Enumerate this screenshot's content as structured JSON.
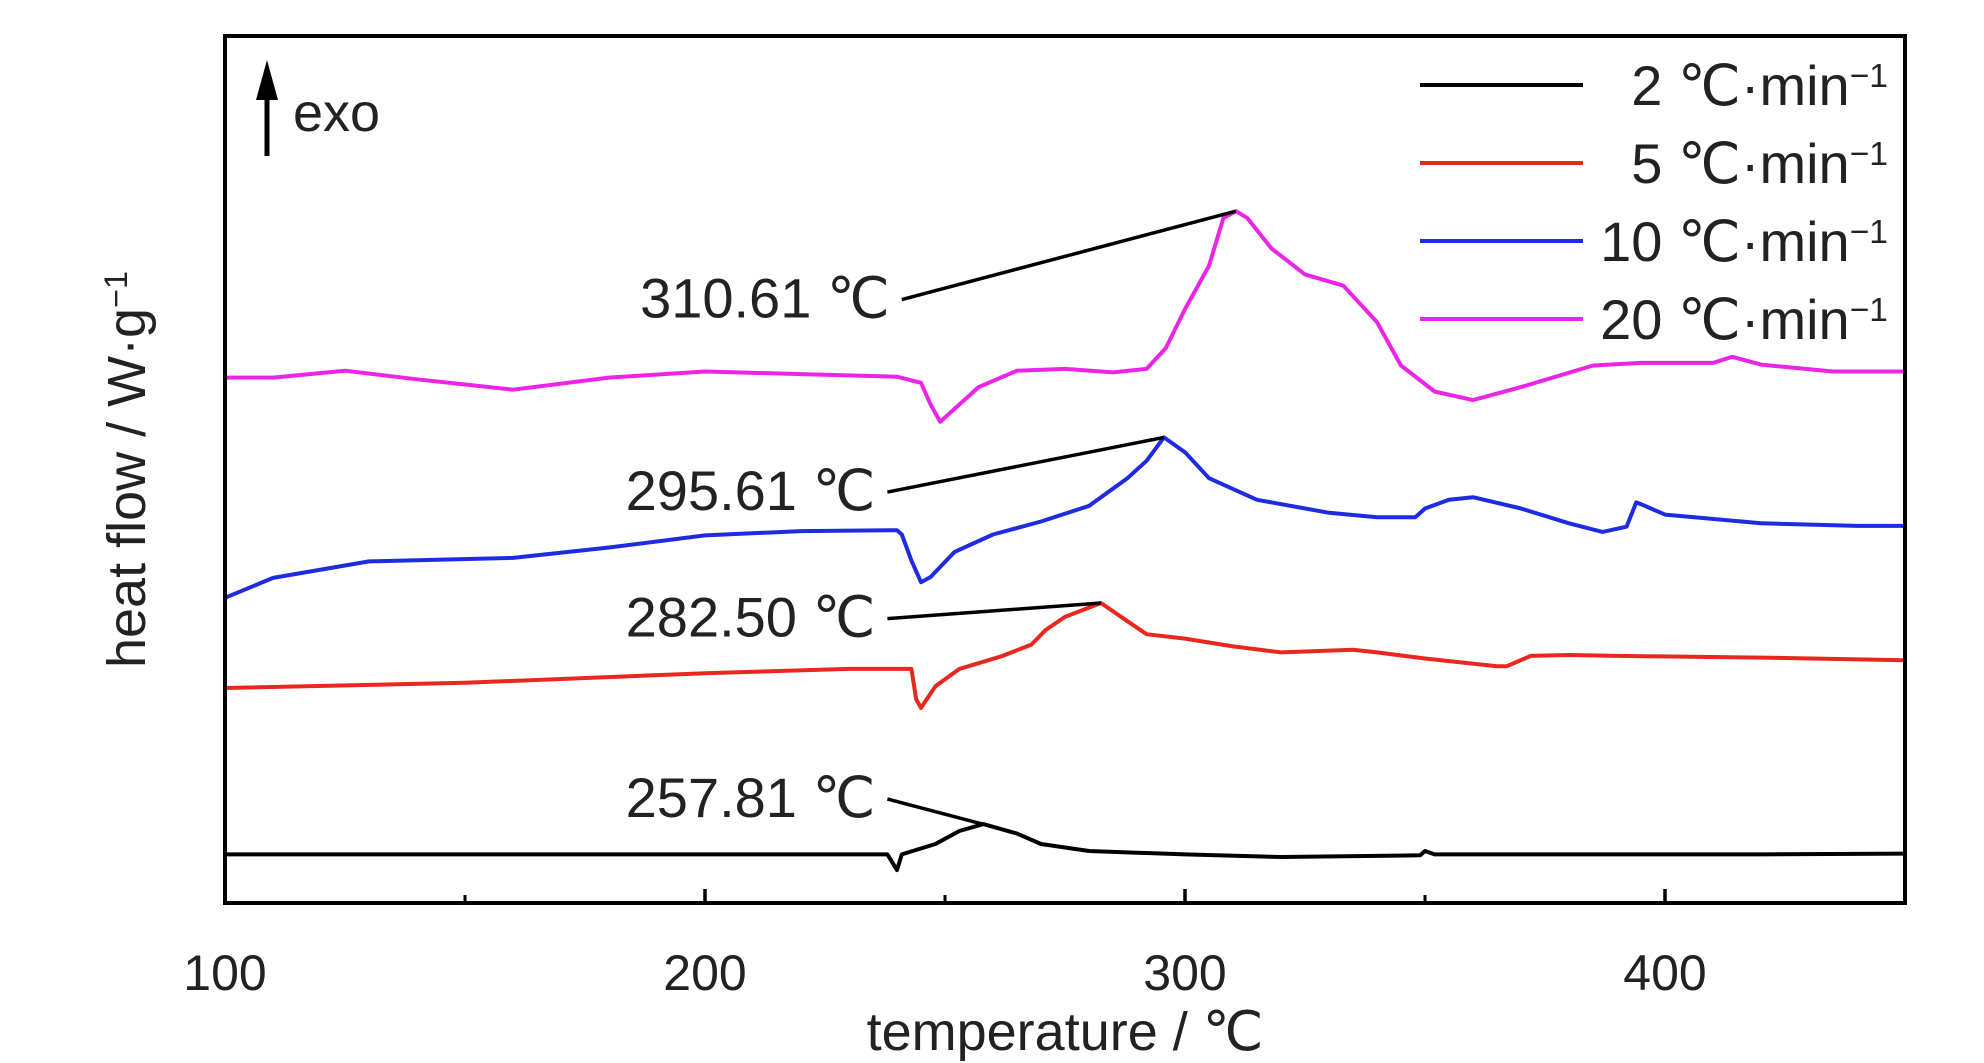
{
  "chart_data": {
    "type": "line",
    "xlabel": "temperature / ℃",
    "ylabel": "heat flow / W·g",
    "ylabel_sup": "−1",
    "xlim": [
      100,
      450
    ],
    "ylim": [
      0,
      100
    ],
    "x_ticks": [
      100,
      200,
      300,
      400
    ],
    "x_minor_ticks": [
      150,
      250,
      350
    ],
    "grid": false,
    "legend_position": "top-right",
    "exo_label": "exo",
    "series": [
      {
        "name": "2 ℃·min",
        "name_sup": "−1",
        "color": "#000000",
        "points": [
          [
            100,
            5.6
          ],
          [
            150,
            5.6
          ],
          [
            200,
            5.6
          ],
          [
            238,
            5.6
          ],
          [
            240,
            3.8
          ],
          [
            241,
            5.6
          ],
          [
            248,
            6.8
          ],
          [
            253,
            8.3
          ],
          [
            258,
            9.1
          ],
          [
            265,
            8.0
          ],
          [
            270,
            6.8
          ],
          [
            280,
            6.0
          ],
          [
            300,
            5.6
          ],
          [
            320,
            5.3
          ],
          [
            349,
            5.5
          ],
          [
            350,
            6.0
          ],
          [
            352,
            5.6
          ],
          [
            380,
            5.6
          ],
          [
            420,
            5.6
          ],
          [
            450,
            5.7
          ]
        ]
      },
      {
        "name": "5 ℃·min",
        "name_sup": "−1",
        "color": "#e8281e",
        "points": [
          [
            100,
            24.8
          ],
          [
            150,
            25.4
          ],
          [
            200,
            26.5
          ],
          [
            230,
            27.0
          ],
          [
            243,
            27.0
          ],
          [
            244,
            23.5
          ],
          [
            245,
            22.5
          ],
          [
            248,
            25.0
          ],
          [
            253,
            27.0
          ],
          [
            262,
            28.5
          ],
          [
            268,
            29.8
          ],
          [
            271,
            31.5
          ],
          [
            275,
            33.0
          ],
          [
            282.5,
            34.6
          ],
          [
            288,
            32.5
          ],
          [
            292,
            31.0
          ],
          [
            300,
            30.5
          ],
          [
            310,
            29.6
          ],
          [
            320,
            28.9
          ],
          [
            335,
            29.2
          ],
          [
            340,
            28.9
          ],
          [
            350,
            28.2
          ],
          [
            365,
            27.3
          ],
          [
            367,
            27.3
          ],
          [
            372,
            28.5
          ],
          [
            380,
            28.6
          ],
          [
            390,
            28.5
          ],
          [
            420,
            28.3
          ],
          [
            450,
            28.0
          ]
        ]
      },
      {
        "name": "10 ℃·min",
        "name_sup": "−1",
        "color": "#1f2be0",
        "points": [
          [
            100,
            35.2
          ],
          [
            110,
            37.5
          ],
          [
            130,
            39.4
          ],
          [
            160,
            39.8
          ],
          [
            180,
            41.0
          ],
          [
            200,
            42.4
          ],
          [
            220,
            42.9
          ],
          [
            240,
            43.0
          ],
          [
            241,
            42.5
          ],
          [
            243,
            39.5
          ],
          [
            245,
            37.0
          ],
          [
            247,
            37.6
          ],
          [
            252,
            40.5
          ],
          [
            260,
            42.5
          ],
          [
            270,
            44.0
          ],
          [
            280,
            45.8
          ],
          [
            288,
            49.0
          ],
          [
            292,
            51.0
          ],
          [
            295.6,
            53.7
          ],
          [
            300,
            52.0
          ],
          [
            305,
            49.0
          ],
          [
            315,
            46.5
          ],
          [
            330,
            45.0
          ],
          [
            340,
            44.5
          ],
          [
            348,
            44.5
          ],
          [
            350,
            45.5
          ],
          [
            355,
            46.5
          ],
          [
            360,
            46.8
          ],
          [
            370,
            45.5
          ],
          [
            380,
            43.8
          ],
          [
            387,
            42.8
          ],
          [
            392,
            43.4
          ],
          [
            394,
            46.2
          ],
          [
            395,
            46.0
          ],
          [
            400,
            44.8
          ],
          [
            420,
            43.8
          ],
          [
            440,
            43.5
          ],
          [
            450,
            43.5
          ]
        ]
      },
      {
        "name": "20 ℃·min",
        "name_sup": "−1",
        "color": "#ec24e6",
        "points": [
          [
            100,
            60.6
          ],
          [
            110,
            60.6
          ],
          [
            125,
            61.4
          ],
          [
            140,
            60.4
          ],
          [
            160,
            59.2
          ],
          [
            180,
            60.6
          ],
          [
            200,
            61.3
          ],
          [
            220,
            61.0
          ],
          [
            240,
            60.7
          ],
          [
            245,
            60.0
          ],
          [
            247,
            57.5
          ],
          [
            249,
            55.5
          ],
          [
            252,
            57.0
          ],
          [
            257,
            59.5
          ],
          [
            265,
            61.4
          ],
          [
            275,
            61.6
          ],
          [
            285,
            61.2
          ],
          [
            292,
            61.6
          ],
          [
            296,
            64.0
          ],
          [
            300,
            68.5
          ],
          [
            305,
            73.5
          ],
          [
            308,
            79.0
          ],
          [
            310.6,
            79.8
          ],
          [
            313,
            79.0
          ],
          [
            318,
            75.5
          ],
          [
            325,
            72.5
          ],
          [
            333,
            71.2
          ],
          [
            340,
            67.0
          ],
          [
            345,
            62.0
          ],
          [
            352,
            59.0
          ],
          [
            360,
            58.0
          ],
          [
            370,
            59.5
          ],
          [
            385,
            62.0
          ],
          [
            395,
            62.3
          ],
          [
            405,
            62.3
          ],
          [
            410,
            62.3
          ],
          [
            414,
            63.0
          ],
          [
            420,
            62.1
          ],
          [
            435,
            61.3
          ],
          [
            450,
            61.3
          ]
        ]
      }
    ],
    "annotations": [
      {
        "text": "257.81 ℃",
        "label_x": 238,
        "label_y": 12.0,
        "x": 257.8,
        "y": 9.1
      },
      {
        "text": "282.50 ℃",
        "label_x": 238,
        "label_y": 32.8,
        "x": 282.5,
        "y": 34.6
      },
      {
        "text": "295.61 ℃",
        "label_x": 238,
        "label_y": 47.4,
        "x": 295.6,
        "y": 53.7
      },
      {
        "text": "310.61 ℃",
        "label_x": 241,
        "label_y": 69.6,
        "x": 310.6,
        "y": 79.8
      }
    ]
  }
}
